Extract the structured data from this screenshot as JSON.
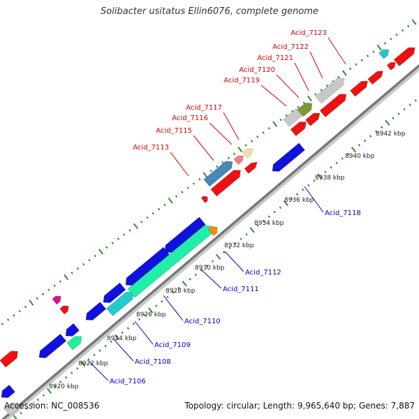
{
  "title": "Solibacter usitatus Ellin6076, complete genome",
  "accession": "Accession: NC_008536",
  "summary": "Topology: circular; Length: 9,965,640 bp; Genes: 7,887",
  "colors": {
    "forward_gene": "#ee1111",
    "reverse_gene": "#1111dd",
    "forward_label": "#dd0000",
    "reverse_label": "#0000cc",
    "backbone": "#777777",
    "ticks": "#2e8b2e"
  },
  "scale_ticks": [
    "8920 kbp",
    "8922 kbp",
    "8924 kbp",
    "8926 kbp",
    "8928 kbp",
    "8930 kbp",
    "8932 kbp",
    "8934 kbp",
    "8936 kbp",
    "8938 kbp",
    "8940 kbp",
    "8942 kbp"
  ],
  "forward_labels": [
    "Acid_7113",
    "Acid_7115",
    "Acid_7116",
    "Acid_7117",
    "Acid_7119",
    "Acid_7120",
    "Acid_7121",
    "Acid_7122",
    "Acid_7123"
  ],
  "reverse_labels": [
    "Acid_7106",
    "Acid_7108",
    "Acid_7109",
    "Acid_7110",
    "Acid_7111",
    "Acid_7112",
    "Acid_7118"
  ]
}
